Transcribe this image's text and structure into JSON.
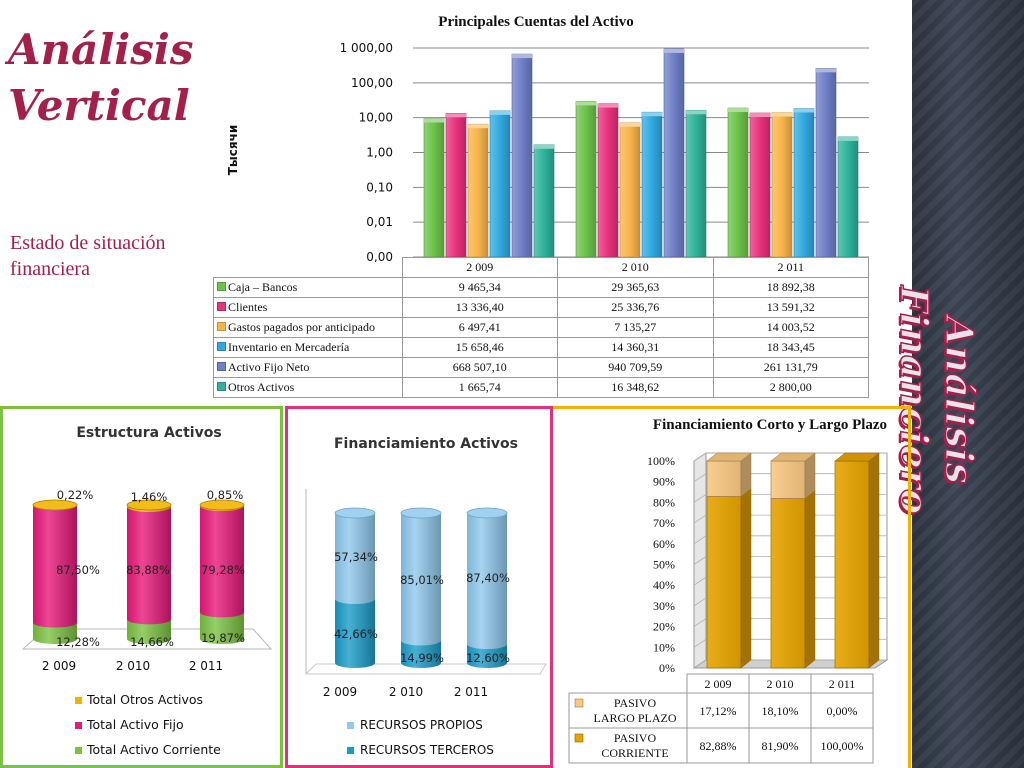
{
  "slide": {
    "title_line1": "Análisis",
    "title_line2": "Vertical",
    "subtitle_line1": "Estado de situación",
    "subtitle_line2": "financiera",
    "side_title": "Análisis Financiero"
  },
  "chart_data": [
    {
      "type": "bar",
      "title": "Principales Cuentas del Activo",
      "ylabel": "Тысячи",
      "yscale": "log",
      "yticks": [
        "0,00",
        "0,01",
        "0,10",
        "1,00",
        "10,00",
        "100,00",
        "1 000,00"
      ],
      "categories": [
        "2 009",
        "2 010",
        "2 011"
      ],
      "series": [
        {
          "name": "Caja – Bancos",
          "values": [
            9.46534,
            29.36563,
            18.89238
          ],
          "labels": [
            "9 465,34",
            "29 365,63",
            "18 892,38"
          ],
          "color": "#6cc24a"
        },
        {
          "name": "Clientes",
          "values": [
            13.3364,
            25.33676,
            13.59132
          ],
          "labels": [
            "13 336,40",
            "25 336,76",
            "13 591,32"
          ],
          "color": "#e8317c"
        },
        {
          "name": "Gastos pagados por anticipado",
          "values": [
            6.49741,
            7.13527,
            14.00352
          ],
          "labels": [
            "6 497,41",
            "7 135,27",
            "14 003,52"
          ],
          "color": "#f7b44a"
        },
        {
          "name": "Inventario en Mercadería",
          "values": [
            15.65846,
            14.36031,
            18.34345
          ],
          "labels": [
            "15 658,46",
            "14 360,31",
            "18 343,45"
          ],
          "color": "#2fa9e0"
        },
        {
          "name": "Activo Fijo Neto",
          "values": [
            668.5071,
            940.70959,
            261.13179
          ],
          "labels": [
            "668 507,10",
            "940 709,59",
            "261 131,79"
          ],
          "color": "#6f7fc8"
        },
        {
          "name": "Otros Activos",
          "values": [
            1.66574,
            16.34862,
            2.8
          ],
          "labels": [
            "1 665,74",
            "16 348,62",
            "2 800,00"
          ],
          "color": "#2fb39a"
        }
      ]
    },
    {
      "type": "bar",
      "stacked": true,
      "title": "Estructura Activos",
      "categories": [
        "2 009",
        "2 010",
        "2 011"
      ],
      "series": [
        {
          "name": "Total Activo Corriente",
          "values": [
            12.28,
            14.66,
            19.87
          ],
          "labels": [
            "12,28%",
            "14,66%",
            "19,87%"
          ],
          "color": "#7cc242"
        },
        {
          "name": "Total Activo Fijo",
          "values": [
            87.5,
            83.88,
            79.28
          ],
          "labels": [
            "87,50%",
            "83,88%",
            "79,28%"
          ],
          "color": "#e8187a"
        },
        {
          "name": "Total Otros Activos",
          "values": [
            0.22,
            1.46,
            0.85
          ],
          "labels": [
            "0,22%",
            "1,46%",
            "0,85%"
          ],
          "color": "#f0b400"
        }
      ]
    },
    {
      "type": "bar",
      "stacked": true,
      "title": "Financiamiento Activos",
      "categories": [
        "2 009",
        "2 010",
        "2 011"
      ],
      "series": [
        {
          "name": "RECURSOS TERCEROS",
          "values": [
            42.66,
            14.99,
            12.6
          ],
          "labels": [
            "42,66%",
            "14,99%",
            "12,60%"
          ],
          "color": "#1a9cc9"
        },
        {
          "name": "RECURSOS PROPIOS",
          "values": [
            57.34,
            85.01,
            87.4
          ],
          "labels": [
            "57,34%",
            "85,01%",
            "87,40%"
          ],
          "color": "#8ec9ee"
        }
      ]
    },
    {
      "type": "bar",
      "stacked": true,
      "title": "Financiamiento Corto y Largo Plazo",
      "categories": [
        "2 009",
        "2 010",
        "2 011"
      ],
      "yticks": [
        "0%",
        "10%",
        "20%",
        "30%",
        "40%",
        "50%",
        "60%",
        "70%",
        "80%",
        "90%",
        "100%"
      ],
      "series": [
        {
          "name": "PASIVO CORRIENTE",
          "name_line1": "PASIVO",
          "name_line2": "CORRIENTE",
          "values": [
            82.88,
            81.9,
            100.0
          ],
          "labels": [
            "82,88%",
            "81,90%",
            "100,00%"
          ],
          "color": "#e7a400"
        },
        {
          "name": "PASIVO LARGO PLAZO",
          "name_line1": "PASIVO",
          "name_line2": "LARGO PLAZO",
          "values": [
            17.12,
            18.1,
            0.0
          ],
          "labels": [
            "17,12%",
            "18,10%",
            "0,00%"
          ],
          "color": "#f9c981"
        }
      ]
    }
  ]
}
